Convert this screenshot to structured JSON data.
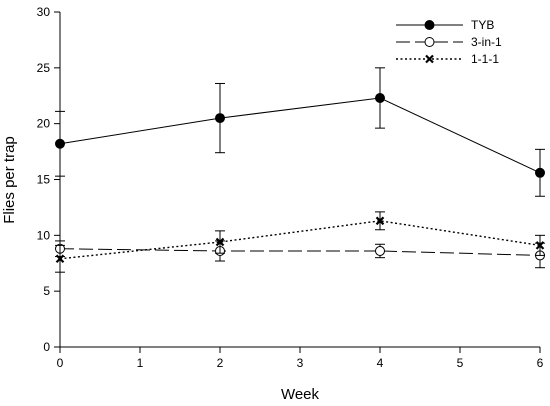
{
  "chart_data": {
    "type": "line",
    "xlabel": "Week",
    "ylabel": "Flies per trap",
    "xlim": [
      0,
      6
    ],
    "ylim": [
      0,
      30
    ],
    "xticks": [
      0,
      1,
      2,
      3,
      4,
      5,
      6
    ],
    "yticks": [
      0,
      5,
      10,
      15,
      20,
      25,
      30
    ],
    "grid": false,
    "legend_position": "top-right",
    "series": [
      {
        "name": "TYB",
        "line_style": "solid",
        "marker": "filled-circle",
        "x": [
          0,
          2,
          4,
          6
        ],
        "y": [
          18.2,
          20.5,
          22.3,
          15.6
        ],
        "error": [
          2.9,
          3.1,
          2.7,
          2.1
        ]
      },
      {
        "name": "3-in-1",
        "line_style": "long-dash",
        "marker": "open-circle",
        "x": [
          0,
          2,
          4,
          6
        ],
        "y": [
          8.8,
          8.6,
          8.6,
          8.2
        ],
        "error": [
          0.7,
          0.9,
          0.6,
          1.1
        ]
      },
      {
        "name": "1-1-1",
        "line_style": "dotted",
        "marker": "x",
        "x": [
          0,
          2,
          4,
          6
        ],
        "y": [
          7.9,
          9.4,
          11.3,
          9.1
        ],
        "error": [
          1.2,
          1.0,
          0.8,
          0.9
        ]
      }
    ]
  }
}
